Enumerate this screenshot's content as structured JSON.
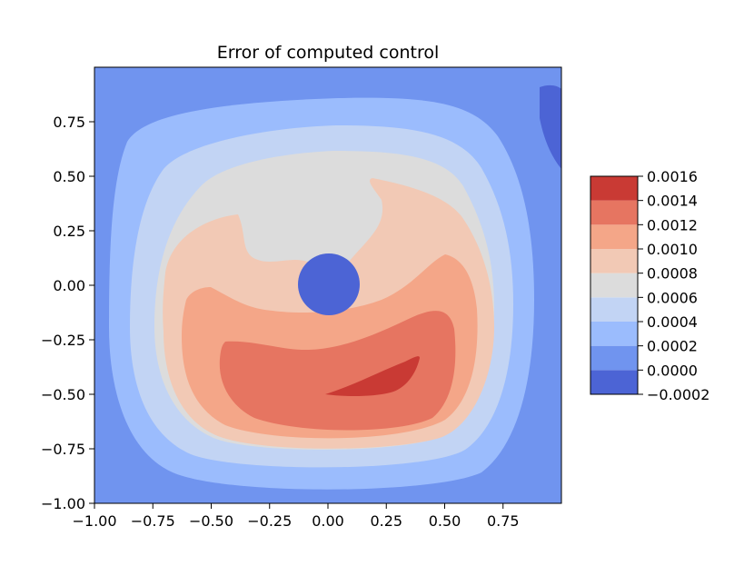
{
  "chart_data": {
    "type": "contourf",
    "title": "Error of computed control",
    "xlabel": "",
    "ylabel": "",
    "xlim": [
      -1.0,
      1.0
    ],
    "ylim": [
      -1.0,
      1.0
    ],
    "x_ticks": [
      -1.0,
      -0.75,
      -0.5,
      -0.25,
      0.0,
      0.25,
      0.5,
      0.75
    ],
    "x_tick_labels": [
      "−1.00",
      "−0.75",
      "−0.50",
      "−0.25",
      "0.00",
      "0.25",
      "0.50",
      "0.75"
    ],
    "y_ticks": [
      -1.0,
      -0.75,
      -0.5,
      -0.25,
      0.0,
      0.25,
      0.5,
      0.75
    ],
    "y_tick_labels": [
      "−1.00",
      "−0.75",
      "−0.50",
      "−0.25",
      "0.00",
      "0.25",
      "0.50",
      "0.75"
    ],
    "grid": false,
    "colormap": "coolwarm",
    "colorbar": {
      "placement": "right",
      "levels": [
        -0.0002,
        0.0,
        0.0002,
        0.0004,
        0.0006,
        0.0008,
        0.001,
        0.0012,
        0.0014,
        0.0016
      ],
      "tick_labels": [
        "−0.0002",
        "0.0000",
        "0.0002",
        "0.0004",
        "0.0006",
        "0.0008",
        "0.0010",
        "0.0012",
        "0.0014",
        "0.0016"
      ],
      "band_colors": [
        "#4c64d5",
        "#7094ef",
        "#9bbcfd",
        "#c2d4f4",
        "#dcdcdc",
        "#f2c9b5",
        "#f4a688",
        "#e67561",
        "#c93a34"
      ]
    },
    "features": [
      {
        "description": "circular hole region",
        "center": [
          0.0,
          0.0
        ],
        "radius": 0.14,
        "value_band": "-0.0002 to 0.0000"
      },
      {
        "description": "maximum error region",
        "center": [
          0.22,
          -0.43
        ],
        "value_band": "0.0014 to 0.0016"
      },
      {
        "description": "low pocket near top-right corner",
        "center": [
          0.97,
          0.7
        ],
        "value_band": "-0.0002 to 0.0000"
      }
    ]
  }
}
